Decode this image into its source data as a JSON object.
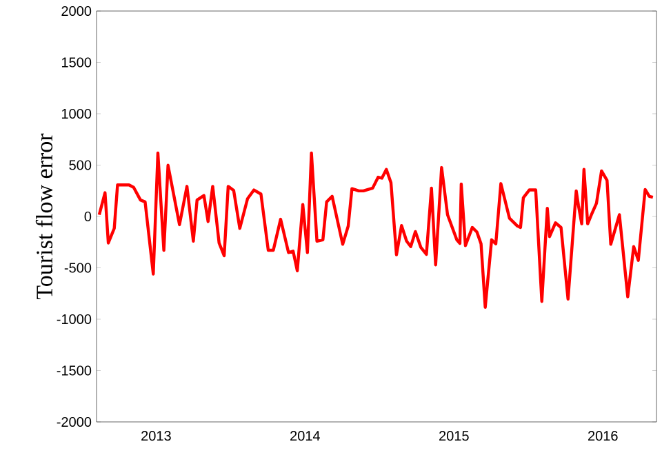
{
  "chart_data": {
    "type": "line",
    "ylabel": "Tourist flow error",
    "xlim": [
      2012.6,
      2016.36
    ],
    "ylim": [
      -2000,
      2000
    ],
    "xticks": [
      2013,
      2014,
      2015,
      2016
    ],
    "yticks": [
      -2000,
      -1500,
      -1000,
      -500,
      0,
      500,
      1000,
      1500,
      2000
    ],
    "grid": false,
    "marker": "none",
    "line_style": "solid",
    "series": [
      {
        "color": "#ff0000",
        "x": [
          2012.618,
          2012.657,
          2012.679,
          2012.719,
          2012.741,
          2012.818,
          2012.849,
          2012.895,
          2012.926,
          2012.981,
          2013.012,
          2013.052,
          2013.08,
          2013.157,
          2013.207,
          2013.25,
          2013.275,
          2013.321,
          2013.349,
          2013.38,
          2013.423,
          2013.457,
          2013.484,
          2013.521,
          2013.562,
          2013.614,
          2013.657,
          2013.704,
          2013.753,
          2013.787,
          2013.836,
          2013.889,
          2013.92,
          2013.948,
          2013.985,
          2014.016,
          2014.043,
          2014.08,
          2014.12,
          2014.145,
          2014.182,
          2014.253,
          2014.29,
          2014.315,
          2014.361,
          2014.392,
          2014.454,
          2014.491,
          2014.516,
          2014.546,
          2014.577,
          2014.614,
          2014.648,
          2014.682,
          2014.71,
          2014.741,
          2014.778,
          2014.815,
          2014.849,
          2014.877,
          2014.917,
          2014.957,
          2015.019,
          2015.04,
          2015.049,
          2015.077,
          2015.123,
          2015.154,
          2015.182,
          2015.21,
          2015.253,
          2015.281,
          2015.315,
          2015.373,
          2015.426,
          2015.447,
          2015.466,
          2015.506,
          2015.549,
          2015.59,
          2015.627,
          2015.642,
          2015.682,
          2015.719,
          2015.766,
          2015.821,
          2015.836,
          2015.858,
          2015.873,
          2015.898,
          2015.923,
          2015.957,
          2015.991,
          2016.028,
          2016.053,
          2016.111,
          2016.167,
          2016.207,
          2016.238,
          2016.284,
          2016.312,
          2016.336
        ],
        "values": [
          17,
          231,
          -258,
          -116,
          307,
          307,
          284,
          160,
          142,
          -560,
          618,
          -329,
          498,
          -80,
          293,
          -240,
          160,
          204,
          -49,
          293,
          -258,
          -382,
          293,
          253,
          -116,
          173,
          258,
          218,
          -329,
          -329,
          -27,
          -351,
          -338,
          -529,
          116,
          -351,
          618,
          -240,
          -227,
          142,
          196,
          -271,
          -93,
          271,
          249,
          249,
          276,
          382,
          373,
          458,
          329,
          -373,
          -89,
          -240,
          -293,
          -147,
          -302,
          -369,
          276,
          -471,
          476,
          17,
          -227,
          -262,
          316,
          -284,
          -107,
          -151,
          -267,
          -884,
          -227,
          -267,
          320,
          -18,
          -93,
          -107,
          182,
          258,
          258,
          -827,
          80,
          -196,
          -62,
          -107,
          -804,
          249,
          107,
          -71,
          458,
          -71,
          17,
          129,
          444,
          351,
          -271,
          17,
          -782,
          -293,
          -427,
          262,
          196,
          187
        ]
      }
    ]
  }
}
